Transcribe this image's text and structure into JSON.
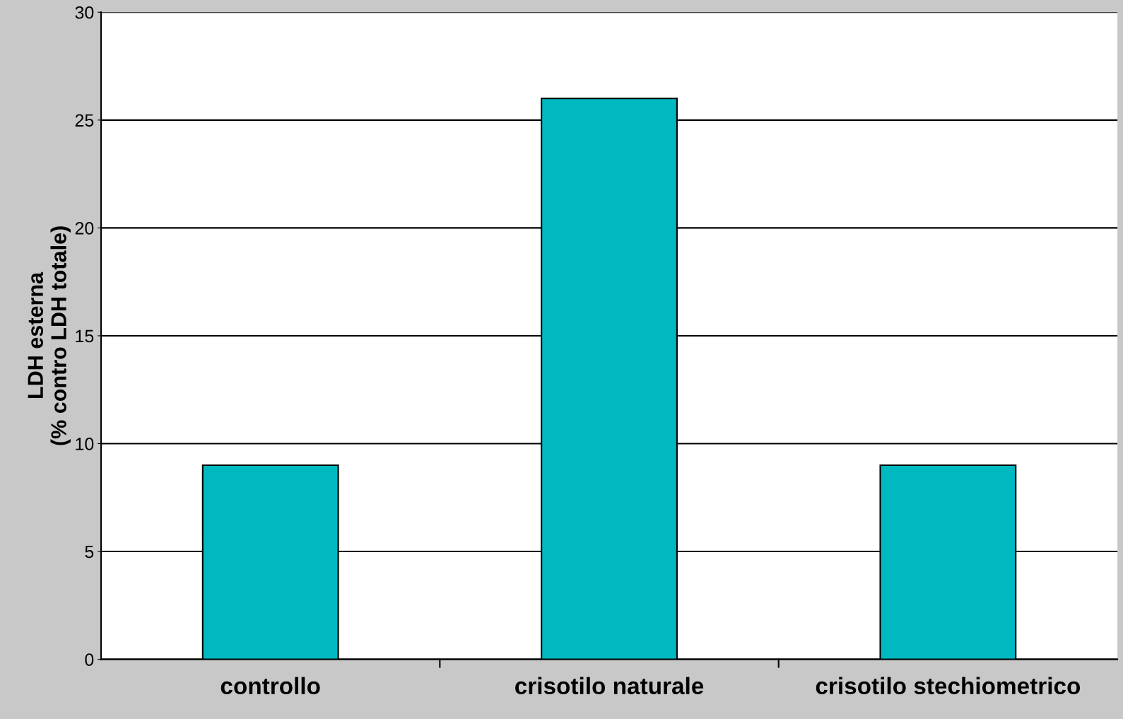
{
  "chart_data": {
    "type": "bar",
    "ylabel": "LDH esterna\n(% contro LDH totale)",
    "categories": [
      "controllo",
      "crisotilo naturale",
      "crisotilo stechiometrico"
    ],
    "values": [
      9,
      26,
      9
    ],
    "color": "#00b8c0",
    "ylim": [
      0,
      30
    ],
    "yticks": [
      0,
      5,
      10,
      15,
      20,
      25,
      30
    ],
    "grid": "y"
  }
}
